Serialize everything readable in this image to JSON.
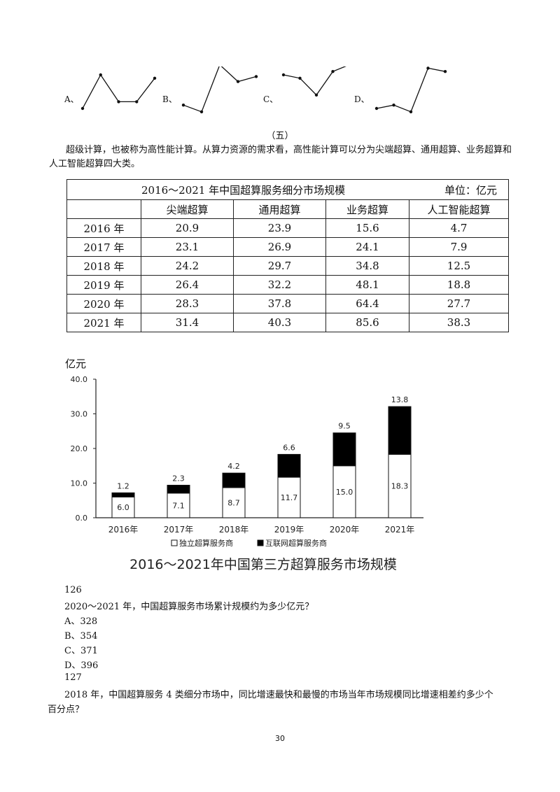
{
  "options_top": {
    "section_label": "（五）",
    "items": [
      {
        "label": "A、",
        "points": [
          [
            0.0,
            0.0
          ],
          [
            1.0,
            1.0
          ],
          [
            2.0,
            0.2
          ],
          [
            3.0,
            0.2
          ],
          [
            4.0,
            0.9
          ]
        ]
      },
      {
        "label": "B、",
        "points": [
          [
            0.0,
            0.1
          ],
          [
            1.0,
            -0.1
          ],
          [
            2.0,
            1.3
          ],
          [
            3.0,
            0.8
          ],
          [
            4.0,
            0.95
          ]
        ]
      },
      {
        "label": "C、",
        "points": [
          [
            0.0,
            1.0
          ],
          [
            1.0,
            0.9
          ],
          [
            2.0,
            0.4
          ],
          [
            3.0,
            1.1
          ],
          [
            4.0,
            1.3
          ]
        ]
      },
      {
        "label": "D、",
        "points": [
          [
            0.0,
            0.0
          ],
          [
            1.0,
            0.1
          ],
          [
            2.0,
            -0.1
          ],
          [
            3.0,
            1.2
          ],
          [
            4.0,
            1.1
          ]
        ]
      }
    ]
  },
  "intro": {
    "paragraph": "超级计算，也被称为高性能计算。从算力资源的需求看，高性能计算可以分为尖端超算、通用超算、业务超算和人工智能超算四大类。"
  },
  "table": {
    "title": "2016～2021 年中国超算服务细分市场规模",
    "unit": "单位：亿元",
    "headers": [
      "",
      "尖端超算",
      "通用超算",
      "业务超算",
      "人工智能超算"
    ],
    "rows": [
      [
        "2016 年",
        "20.9",
        "23.9",
        "15.6",
        "4.7"
      ],
      [
        "2017 年",
        "23.1",
        "26.9",
        "24.1",
        "7.9"
      ],
      [
        "2018 年",
        "24.2",
        "29.7",
        "34.8",
        "12.5"
      ],
      [
        "2019 年",
        "26.4",
        "32.2",
        "48.1",
        "18.8"
      ],
      [
        "2020 年",
        "28.3",
        "37.8",
        "64.4",
        "27.7"
      ],
      [
        "2021 年",
        "31.4",
        "40.3",
        "85.6",
        "38.3"
      ]
    ]
  },
  "chart_data": {
    "type": "bar",
    "stacked": true,
    "title": "2016～2021年中国第三方超算服务市场规模",
    "ylabel": "亿元",
    "ylim": [
      0,
      40
    ],
    "yticks": [
      "0.0",
      "10.0",
      "20.0",
      "30.0",
      "40.0"
    ],
    "categories": [
      "2016年",
      "2017年",
      "2018年",
      "2019年",
      "2020年",
      "2021年"
    ],
    "series": [
      {
        "name": "独立超算服务商",
        "color": "#ffffff",
        "values": [
          6.0,
          7.1,
          8.7,
          11.7,
          15.0,
          18.3
        ],
        "labels": [
          "6.0",
          "7.1",
          "8.7",
          "11.7",
          "15.0",
          "18.3"
        ]
      },
      {
        "name": "互联网超算服务商",
        "color": "#000000",
        "values": [
          1.2,
          2.3,
          4.2,
          6.6,
          9.5,
          13.8
        ],
        "labels": [
          "1.2",
          "2.3",
          "4.2",
          "6.6",
          "9.5",
          "13.8"
        ]
      }
    ],
    "legend_position": "bottom",
    "grid": false
  },
  "questions": [
    {
      "number": "126",
      "text": "2020～2021 年，中国超算服务市场累计规模约为多少亿元？",
      "options": [
        "A、328",
        "B、354",
        "C、371",
        "D、396"
      ]
    },
    {
      "number": "127",
      "text_line1": "2018 年，中国超算服务 4 类细分市场中，同比增速最快和最慢的市场当年市场规模同比增速相差约多少个",
      "text_line2": "百分点？"
    }
  ],
  "page_number": "30"
}
